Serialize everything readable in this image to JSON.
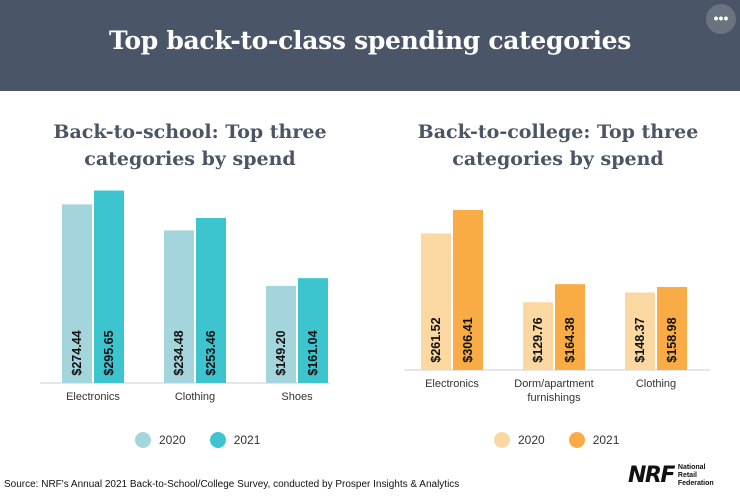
{
  "banner": {
    "title": "Top back-to-class spending categories",
    "more_icon": "more-horizontal-icon",
    "more_label": "•••"
  },
  "colors": {
    "school_2020": "#a5d5dc",
    "school_2021": "#3cc5cf",
    "college_2020": "#fbd7a1",
    "college_2021": "#f9ac45",
    "banner_bg": "#4a5568",
    "axis": "#cccccc"
  },
  "chart_data": [
    {
      "type": "bar",
      "title_lines": [
        "Back-to-school: Top three",
        "categories by spend"
      ],
      "categories": [
        "Electronics",
        "Clothing",
        "Shoes"
      ],
      "series": [
        {
          "name": "2020",
          "values": [
            274.44,
            234.48,
            149.2
          ],
          "labels": [
            "$274.44",
            "$234.48",
            "$149.20"
          ]
        },
        {
          "name": "2021",
          "values": [
            295.65,
            253.46,
            161.04
          ],
          "labels": [
            "$295.65",
            "$253.46",
            "$161.04"
          ]
        }
      ],
      "ylim": [
        0,
        300
      ],
      "grid": false,
      "legend": "bottom"
    },
    {
      "type": "bar",
      "title_lines": [
        "Back-to-college: Top three",
        "categories by spend"
      ],
      "categories": [
        "Electronics",
        "Dorm/apartment furnishings",
        "Clothing"
      ],
      "category_lines": [
        [
          "Electronics"
        ],
        [
          "Dorm/apartment",
          "furnishings"
        ],
        [
          "Clothing"
        ]
      ],
      "series": [
        {
          "name": "2020",
          "values": [
            261.52,
            129.76,
            148.37
          ],
          "labels": [
            "$261.52",
            "$129.76",
            "$148.37"
          ]
        },
        {
          "name": "2021",
          "values": [
            306.41,
            164.38,
            158.98
          ],
          "labels": [
            "$306.41",
            "$164.38",
            "$158.98"
          ]
        }
      ],
      "ylim": [
        0,
        320
      ],
      "grid": false,
      "legend": "bottom"
    }
  ],
  "source": "Source: NRF's Annual 2021 Back-to-School/College Survey, conducted by Prosper Insights & Analytics",
  "logo": {
    "mark": "NRF",
    "lines": [
      "National",
      "Retail",
      "Federation"
    ]
  }
}
